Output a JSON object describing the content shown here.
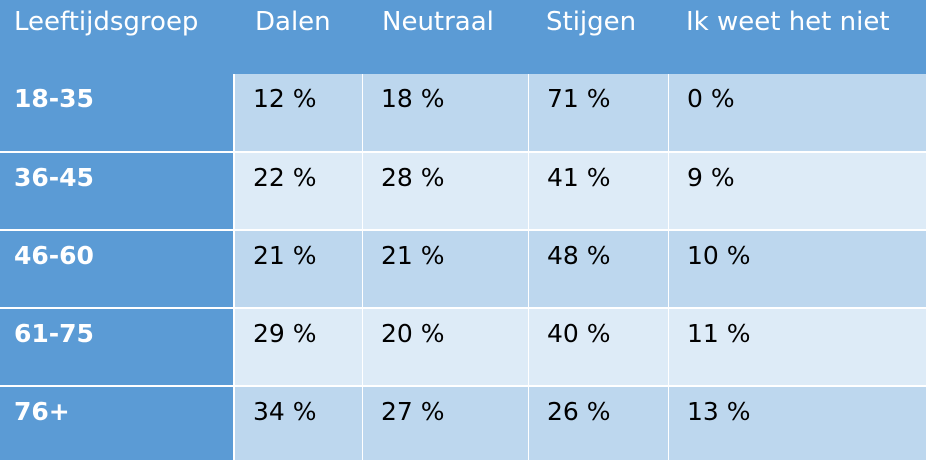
{
  "table": {
    "headers": [
      "Leeftijdsgroep",
      "Dalen",
      "Neutraal",
      "Stijgen",
      "Ik weet het niet"
    ],
    "rows": [
      {
        "label": "18-35",
        "values": [
          "12 %",
          "18 %",
          "71 %",
          "0 %"
        ]
      },
      {
        "label": "36-45",
        "values": [
          "22 %",
          "28 %",
          "41 %",
          "9 %"
        ]
      },
      {
        "label": "46-60",
        "values": [
          "21 %",
          "21 %",
          "48 %",
          "10 %"
        ]
      },
      {
        "label": "61-75",
        "values": [
          "29 %",
          "20 %",
          "40 %",
          "11 %"
        ]
      },
      {
        "label": "76+",
        "values": [
          "34 %",
          "27 %",
          "26 %",
          "13 %"
        ]
      }
    ]
  },
  "colors": {
    "header_bg": "#5b9bd5",
    "row_dark": "#bdd7ee",
    "row_light": "#ddebf7",
    "header_text": "#ffffff",
    "cell_text": "#000000"
  }
}
